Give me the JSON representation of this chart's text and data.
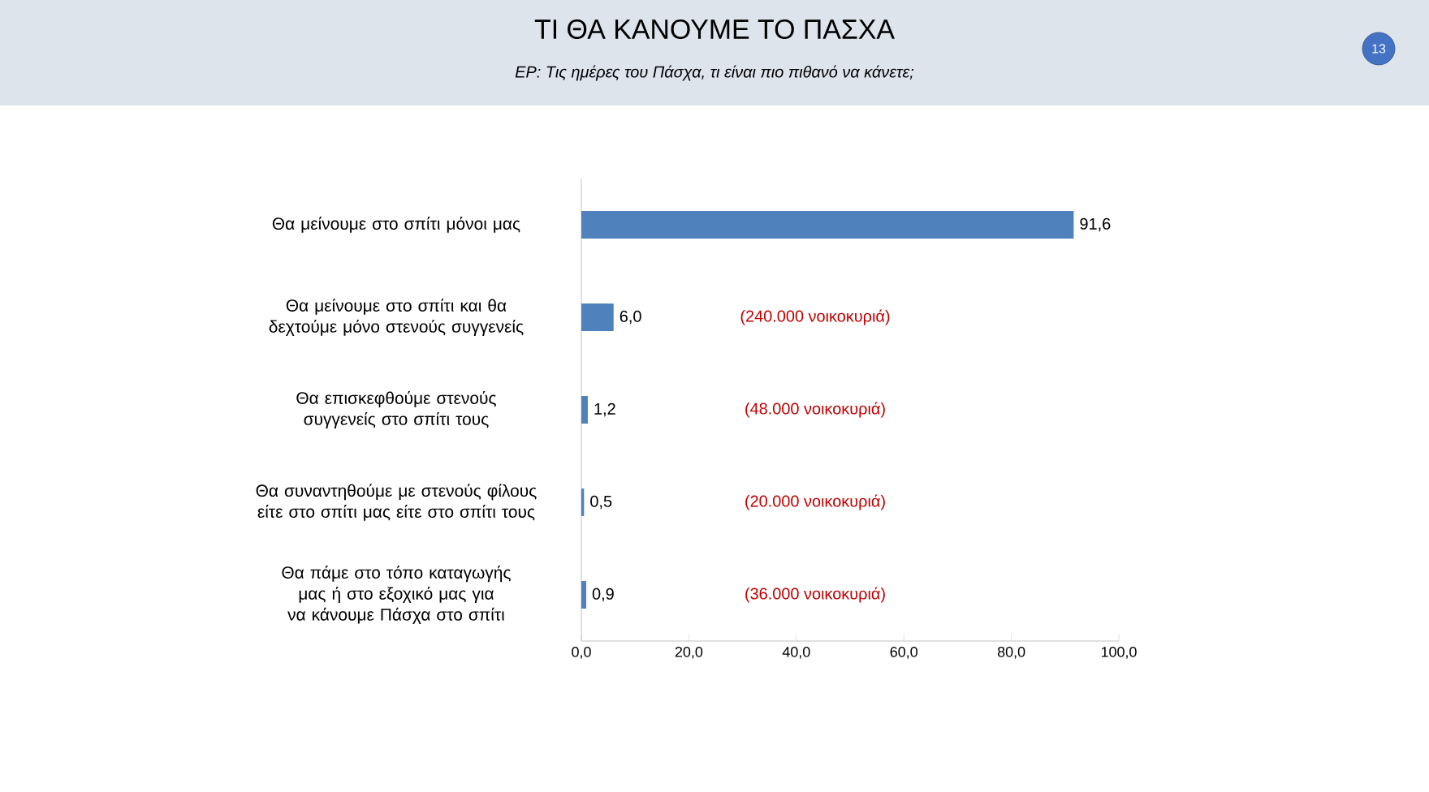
{
  "chart_data": {
    "type": "bar",
    "orientation": "horizontal",
    "title": "ΤΙ ΘΑ ΚΑΝΟΥΜΕ ΤΟ ΠΑΣΧΑ",
    "subtitle": "ΕΡ: Τις ημέρες του Πάσχα, τι είναι πιο πιθανό να κάνετε;",
    "categories": [
      "Θα μείνουμε στο σπίτι μόνοι μας",
      "Θα μείνουμε στο σπίτι και θα δεχτούμε μόνο στενούς συγγενείς",
      "Θα επισκεφθούμε στενούς συγγενείς στο σπίτι τους",
      "Θα συναντηθούμε με στενούς φίλους είτε στο σπίτι μας είτε στο σπίτι τους",
      "Θα πάμε στο τόπο καταγωγής μας ή στο εξοχικό μας για να κάνουμε Πάσχα στο σπίτι"
    ],
    "values": [
      91.6,
      6.0,
      1.2,
      0.5,
      0.9
    ],
    "value_labels": [
      "91,6",
      "6,0",
      "1,2",
      "0,5",
      "0,9"
    ],
    "color": "#4f81bd",
    "xlim": [
      0,
      100
    ],
    "xticks": [
      {
        "value": 0,
        "label": "0,0"
      },
      {
        "value": 20,
        "label": "20,0"
      },
      {
        "value": 40,
        "label": "40,0"
      },
      {
        "value": 60,
        "label": "60,0"
      },
      {
        "value": 80,
        "label": "80,0"
      },
      {
        "value": 100,
        "label": "100,0"
      }
    ],
    "annotations": [
      "13",
      "(240.000 νοικοκυριά)",
      "(48.000 νοικοκυριά)",
      "(20.000 νοικοκυριά)",
      "(36.000 νοικοκυριά)"
    ]
  }
}
